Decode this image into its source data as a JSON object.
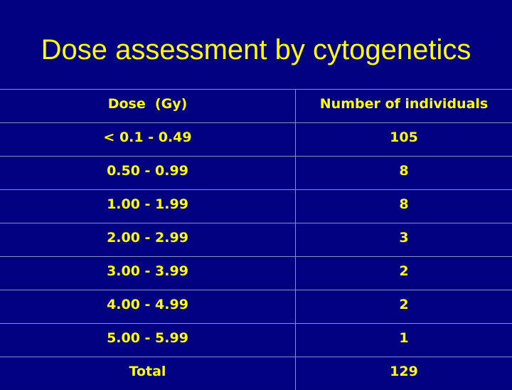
{
  "slide": {
    "title": "Dose assessment by cytogenetics"
  },
  "table": {
    "headers": {
      "dose": "Dose  (Gy)",
      "count": "Number of individuals"
    },
    "rows": [
      {
        "dose": "< 0.1 - 0.49",
        "count": "105"
      },
      {
        "dose": "0.50 - 0.99",
        "count": "8"
      },
      {
        "dose": "1.00 - 1.99",
        "count": "8"
      },
      {
        "dose": "2.00 - 2.99",
        "count": "3"
      },
      {
        "dose": "3.00 - 3.99",
        "count": "2"
      },
      {
        "dose": "4.00 - 4.99",
        "count": "2"
      },
      {
        "dose": "5.00 - 5.99",
        "count": "1"
      }
    ],
    "total": {
      "label": "Total",
      "count": "129"
    }
  },
  "colors": {
    "background": "#000080",
    "text": "#ffff00",
    "grid": "#8a8ac8"
  }
}
